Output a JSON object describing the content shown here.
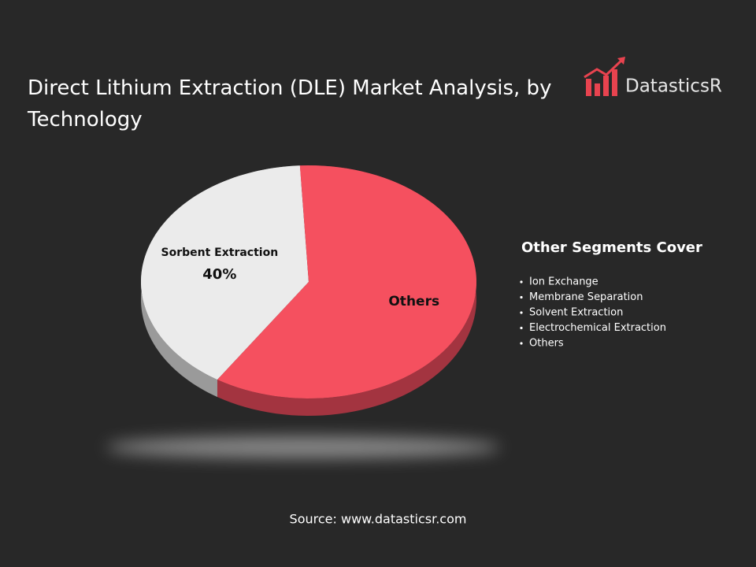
{
  "chart_data": {
    "type": "pie",
    "title": "Direct Lithium Extraction (DLE) Market Analysis, by Technology",
    "categories": [
      "Sorbent Extraction",
      "Others"
    ],
    "values": [
      40,
      60
    ],
    "value_labels": [
      "40%",
      null
    ],
    "colors": [
      "#ebebeb",
      "#f5505f"
    ],
    "side_colors": [
      "#9a9a9a",
      "#a33440"
    ]
  },
  "logo": "DatasticsR",
  "side_panel": {
    "title": "Other Segments Cover",
    "items": [
      "Ion Exchange",
      "Membrane Separation",
      "Solvent Extraction",
      "Electrochemical Extraction",
      "Others"
    ]
  },
  "source": "Source: www.datasticsr.com"
}
